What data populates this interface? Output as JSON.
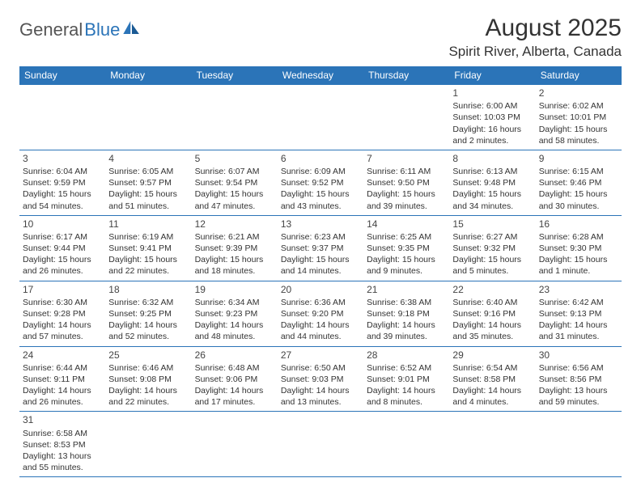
{
  "brand": {
    "part1": "General",
    "part2": "Blue"
  },
  "title": "August 2025",
  "location": "Spirit River, Alberta, Canada",
  "colors": {
    "header_bg": "#2b74b8",
    "header_text": "#ffffff",
    "border": "#2b74b8",
    "body_text": "#333333",
    "background": "#ffffff"
  },
  "typography": {
    "title_fontsize": 30,
    "location_fontsize": 17,
    "dayheader_fontsize": 12,
    "cell_fontsize": 10.5
  },
  "day_headers": [
    "Sunday",
    "Monday",
    "Tuesday",
    "Wednesday",
    "Thursday",
    "Friday",
    "Saturday"
  ],
  "weeks": [
    [
      null,
      null,
      null,
      null,
      null,
      {
        "n": "1",
        "sr": "Sunrise: 6:00 AM",
        "ss": "Sunset: 10:03 PM",
        "d1": "Daylight: 16 hours",
        "d2": "and 2 minutes."
      },
      {
        "n": "2",
        "sr": "Sunrise: 6:02 AM",
        "ss": "Sunset: 10:01 PM",
        "d1": "Daylight: 15 hours",
        "d2": "and 58 minutes."
      }
    ],
    [
      {
        "n": "3",
        "sr": "Sunrise: 6:04 AM",
        "ss": "Sunset: 9:59 PM",
        "d1": "Daylight: 15 hours",
        "d2": "and 54 minutes."
      },
      {
        "n": "4",
        "sr": "Sunrise: 6:05 AM",
        "ss": "Sunset: 9:57 PM",
        "d1": "Daylight: 15 hours",
        "d2": "and 51 minutes."
      },
      {
        "n": "5",
        "sr": "Sunrise: 6:07 AM",
        "ss": "Sunset: 9:54 PM",
        "d1": "Daylight: 15 hours",
        "d2": "and 47 minutes."
      },
      {
        "n": "6",
        "sr": "Sunrise: 6:09 AM",
        "ss": "Sunset: 9:52 PM",
        "d1": "Daylight: 15 hours",
        "d2": "and 43 minutes."
      },
      {
        "n": "7",
        "sr": "Sunrise: 6:11 AM",
        "ss": "Sunset: 9:50 PM",
        "d1": "Daylight: 15 hours",
        "d2": "and 39 minutes."
      },
      {
        "n": "8",
        "sr": "Sunrise: 6:13 AM",
        "ss": "Sunset: 9:48 PM",
        "d1": "Daylight: 15 hours",
        "d2": "and 34 minutes."
      },
      {
        "n": "9",
        "sr": "Sunrise: 6:15 AM",
        "ss": "Sunset: 9:46 PM",
        "d1": "Daylight: 15 hours",
        "d2": "and 30 minutes."
      }
    ],
    [
      {
        "n": "10",
        "sr": "Sunrise: 6:17 AM",
        "ss": "Sunset: 9:44 PM",
        "d1": "Daylight: 15 hours",
        "d2": "and 26 minutes."
      },
      {
        "n": "11",
        "sr": "Sunrise: 6:19 AM",
        "ss": "Sunset: 9:41 PM",
        "d1": "Daylight: 15 hours",
        "d2": "and 22 minutes."
      },
      {
        "n": "12",
        "sr": "Sunrise: 6:21 AM",
        "ss": "Sunset: 9:39 PM",
        "d1": "Daylight: 15 hours",
        "d2": "and 18 minutes."
      },
      {
        "n": "13",
        "sr": "Sunrise: 6:23 AM",
        "ss": "Sunset: 9:37 PM",
        "d1": "Daylight: 15 hours",
        "d2": "and 14 minutes."
      },
      {
        "n": "14",
        "sr": "Sunrise: 6:25 AM",
        "ss": "Sunset: 9:35 PM",
        "d1": "Daylight: 15 hours",
        "d2": "and 9 minutes."
      },
      {
        "n": "15",
        "sr": "Sunrise: 6:27 AM",
        "ss": "Sunset: 9:32 PM",
        "d1": "Daylight: 15 hours",
        "d2": "and 5 minutes."
      },
      {
        "n": "16",
        "sr": "Sunrise: 6:28 AM",
        "ss": "Sunset: 9:30 PM",
        "d1": "Daylight: 15 hours",
        "d2": "and 1 minute."
      }
    ],
    [
      {
        "n": "17",
        "sr": "Sunrise: 6:30 AM",
        "ss": "Sunset: 9:28 PM",
        "d1": "Daylight: 14 hours",
        "d2": "and 57 minutes."
      },
      {
        "n": "18",
        "sr": "Sunrise: 6:32 AM",
        "ss": "Sunset: 9:25 PM",
        "d1": "Daylight: 14 hours",
        "d2": "and 52 minutes."
      },
      {
        "n": "19",
        "sr": "Sunrise: 6:34 AM",
        "ss": "Sunset: 9:23 PM",
        "d1": "Daylight: 14 hours",
        "d2": "and 48 minutes."
      },
      {
        "n": "20",
        "sr": "Sunrise: 6:36 AM",
        "ss": "Sunset: 9:20 PM",
        "d1": "Daylight: 14 hours",
        "d2": "and 44 minutes."
      },
      {
        "n": "21",
        "sr": "Sunrise: 6:38 AM",
        "ss": "Sunset: 9:18 PM",
        "d1": "Daylight: 14 hours",
        "d2": "and 39 minutes."
      },
      {
        "n": "22",
        "sr": "Sunrise: 6:40 AM",
        "ss": "Sunset: 9:16 PM",
        "d1": "Daylight: 14 hours",
        "d2": "and 35 minutes."
      },
      {
        "n": "23",
        "sr": "Sunrise: 6:42 AM",
        "ss": "Sunset: 9:13 PM",
        "d1": "Daylight: 14 hours",
        "d2": "and 31 minutes."
      }
    ],
    [
      {
        "n": "24",
        "sr": "Sunrise: 6:44 AM",
        "ss": "Sunset: 9:11 PM",
        "d1": "Daylight: 14 hours",
        "d2": "and 26 minutes."
      },
      {
        "n": "25",
        "sr": "Sunrise: 6:46 AM",
        "ss": "Sunset: 9:08 PM",
        "d1": "Daylight: 14 hours",
        "d2": "and 22 minutes."
      },
      {
        "n": "26",
        "sr": "Sunrise: 6:48 AM",
        "ss": "Sunset: 9:06 PM",
        "d1": "Daylight: 14 hours",
        "d2": "and 17 minutes."
      },
      {
        "n": "27",
        "sr": "Sunrise: 6:50 AM",
        "ss": "Sunset: 9:03 PM",
        "d1": "Daylight: 14 hours",
        "d2": "and 13 minutes."
      },
      {
        "n": "28",
        "sr": "Sunrise: 6:52 AM",
        "ss": "Sunset: 9:01 PM",
        "d1": "Daylight: 14 hours",
        "d2": "and 8 minutes."
      },
      {
        "n": "29",
        "sr": "Sunrise: 6:54 AM",
        "ss": "Sunset: 8:58 PM",
        "d1": "Daylight: 14 hours",
        "d2": "and 4 minutes."
      },
      {
        "n": "30",
        "sr": "Sunrise: 6:56 AM",
        "ss": "Sunset: 8:56 PM",
        "d1": "Daylight: 13 hours",
        "d2": "and 59 minutes."
      }
    ],
    [
      {
        "n": "31",
        "sr": "Sunrise: 6:58 AM",
        "ss": "Sunset: 8:53 PM",
        "d1": "Daylight: 13 hours",
        "d2": "and 55 minutes."
      },
      null,
      null,
      null,
      null,
      null,
      null
    ]
  ]
}
